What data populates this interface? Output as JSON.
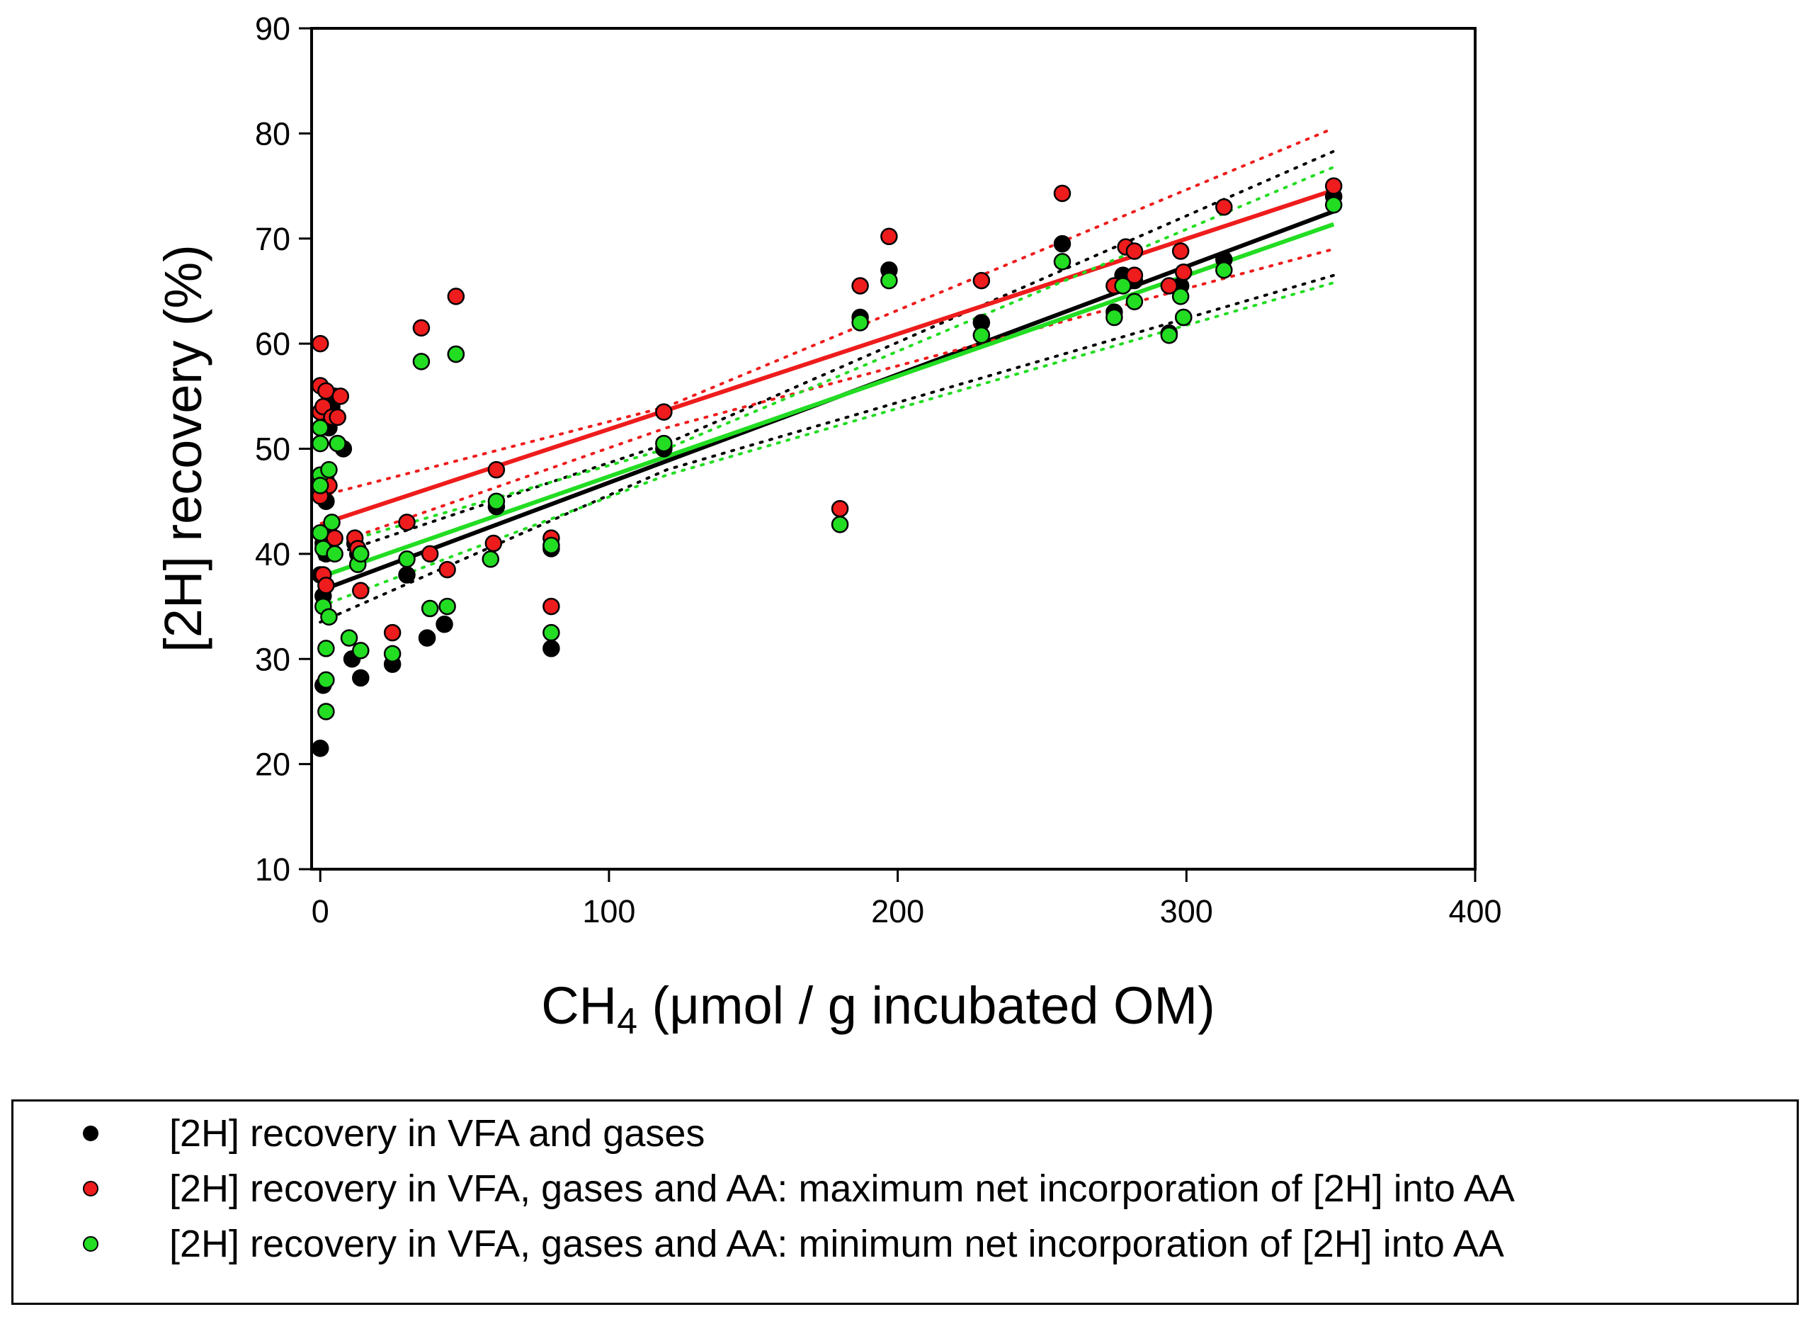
{
  "chart_data": {
    "type": "scatter",
    "title": "",
    "xlabel": "CH4 (μmol / g incubated OM)",
    "xlabel_main": "CH",
    "xlabel_sub": "4",
    "xlabel_rest": " (μmol / g incubated OM)",
    "ylabel": "[2H] recovery (%)",
    "xlim": [
      -3,
      400
    ],
    "ylim": [
      10,
      90
    ],
    "xticks": [
      "0",
      "100",
      "200",
      "300",
      "400"
    ],
    "yticks": [
      "10",
      "20",
      "30",
      "40",
      "50",
      "60",
      "70",
      "80",
      "90"
    ],
    "grid": false,
    "legend_position": "bottom",
    "series": [
      {
        "name": "[2H] recovery in VFA and gases",
        "color": "#000000",
        "points": [
          [
            0,
            21.5
          ],
          [
            1,
            27.5
          ],
          [
            1,
            36
          ],
          [
            1,
            41
          ],
          [
            2,
            45
          ],
          [
            2,
            47
          ],
          [
            3,
            52
          ],
          [
            4,
            54
          ],
          [
            5,
            55
          ],
          [
            6,
            50.5
          ],
          [
            8,
            50
          ],
          [
            0,
            38
          ],
          [
            2,
            40
          ],
          [
            3,
            42
          ],
          [
            11,
            30
          ],
          [
            12,
            41
          ],
          [
            13,
            40
          ],
          [
            14,
            28.2
          ],
          [
            25,
            29.5
          ],
          [
            30,
            38
          ],
          [
            37,
            32
          ],
          [
            43,
            33.3
          ],
          [
            47,
            59
          ],
          [
            61,
            44.5
          ],
          [
            80,
            40.5
          ],
          [
            80,
            31
          ],
          [
            119,
            50
          ],
          [
            187,
            62.5
          ],
          [
            197,
            67
          ],
          [
            229,
            62
          ],
          [
            257,
            69.5
          ],
          [
            275,
            63
          ],
          [
            278,
            66.5
          ],
          [
            282,
            66
          ],
          [
            294,
            61
          ],
          [
            298,
            65.5
          ],
          [
            299,
            62.5
          ],
          [
            313,
            68
          ],
          [
            351,
            74
          ]
        ],
        "fit": {
          "intercept": 36.5,
          "slope": 0.1028,
          "x_range": [
            0,
            351
          ]
        },
        "ci_upper": [
          [
            0,
            39.5
          ],
          [
            120,
            50.5
          ],
          [
            351,
            78.3
          ]
        ],
        "ci_lower": [
          [
            0,
            33.5
          ],
          [
            120,
            48
          ],
          [
            351,
            66.5
          ]
        ]
      },
      {
        "name": "[2H] recovery in VFA, gases and AA: maximum net incorporation of [2H] into AA",
        "color": "#ee1c1c",
        "points": [
          [
            0,
            60
          ],
          [
            0,
            56
          ],
          [
            0,
            53.5
          ],
          [
            1,
            54
          ],
          [
            2,
            55.5
          ],
          [
            3,
            46.5
          ],
          [
            4,
            53
          ],
          [
            5,
            41.5
          ],
          [
            6,
            53
          ],
          [
            7,
            55
          ],
          [
            0,
            45.5
          ],
          [
            1,
            38
          ],
          [
            2,
            37
          ],
          [
            12,
            41.5
          ],
          [
            13,
            40.5
          ],
          [
            14,
            36.5
          ],
          [
            25,
            32.5
          ],
          [
            30,
            43
          ],
          [
            35,
            61.5
          ],
          [
            38,
            40
          ],
          [
            44,
            38.5
          ],
          [
            47,
            64.5
          ],
          [
            60,
            41
          ],
          [
            61,
            48
          ],
          [
            80,
            41.5
          ],
          [
            80,
            35
          ],
          [
            119,
            53.5
          ],
          [
            180,
            44.3
          ],
          [
            187,
            65.5
          ],
          [
            197,
            70.2
          ],
          [
            229,
            66
          ],
          [
            257,
            74.3
          ],
          [
            275,
            65.5
          ],
          [
            279,
            69.2
          ],
          [
            282,
            68.8
          ],
          [
            282,
            66.5
          ],
          [
            294,
            65.5
          ],
          [
            298,
            68.8
          ],
          [
            299,
            66.8
          ],
          [
            313,
            73
          ],
          [
            351,
            75
          ]
        ],
        "fit": {
          "intercept": 42.8,
          "slope": 0.0906,
          "x_range": [
            0,
            351
          ]
        },
        "ci_upper": [
          [
            0,
            45.5
          ],
          [
            120,
            54
          ],
          [
            351,
            80.5
          ]
        ],
        "ci_lower": [
          [
            0,
            40.5
          ],
          [
            120,
            52
          ],
          [
            351,
            69
          ]
        ]
      },
      {
        "name": "[2H] recovery in VFA, gases and AA: minimum net incorporation of [2H] into AA",
        "color": "#22dd22",
        "points": [
          [
            0,
            52
          ],
          [
            0,
            50.5
          ],
          [
            0,
            47.5
          ],
          [
            0,
            46.5
          ],
          [
            0,
            42
          ],
          [
            1,
            40.5
          ],
          [
            1,
            35
          ],
          [
            2,
            31
          ],
          [
            2,
            28
          ],
          [
            2,
            25
          ],
          [
            3,
            48
          ],
          [
            4,
            43
          ],
          [
            5,
            40
          ],
          [
            6,
            50.5
          ],
          [
            3,
            34
          ],
          [
            10,
            32
          ],
          [
            13,
            39
          ],
          [
            14,
            40
          ],
          [
            14,
            30.8
          ],
          [
            25,
            30.5
          ],
          [
            30,
            39.5
          ],
          [
            35,
            58.3
          ],
          [
            38,
            34.8
          ],
          [
            44,
            35
          ],
          [
            47,
            59
          ],
          [
            59,
            39.5
          ],
          [
            61,
            45
          ],
          [
            80,
            40.8
          ],
          [
            80,
            32.5
          ],
          [
            119,
            50.5
          ],
          [
            180,
            42.8
          ],
          [
            187,
            62
          ],
          [
            197,
            66
          ],
          [
            229,
            60.8
          ],
          [
            257,
            67.8
          ],
          [
            275,
            62.5
          ],
          [
            278,
            65.5
          ],
          [
            282,
            64
          ],
          [
            294,
            60.8
          ],
          [
            298,
            64.5
          ],
          [
            299,
            62.5
          ],
          [
            313,
            67
          ],
          [
            351,
            73.2
          ]
        ],
        "fit": {
          "intercept": 37.8,
          "slope": 0.0956,
          "x_range": [
            0,
            351
          ]
        },
        "ci_upper": [
          [
            0,
            40.5
          ],
          [
            120,
            50
          ],
          [
            351,
            76.8
          ]
        ],
        "ci_lower": [
          [
            0,
            35
          ],
          [
            120,
            47.5
          ],
          [
            351,
            65.8
          ]
        ]
      }
    ]
  }
}
